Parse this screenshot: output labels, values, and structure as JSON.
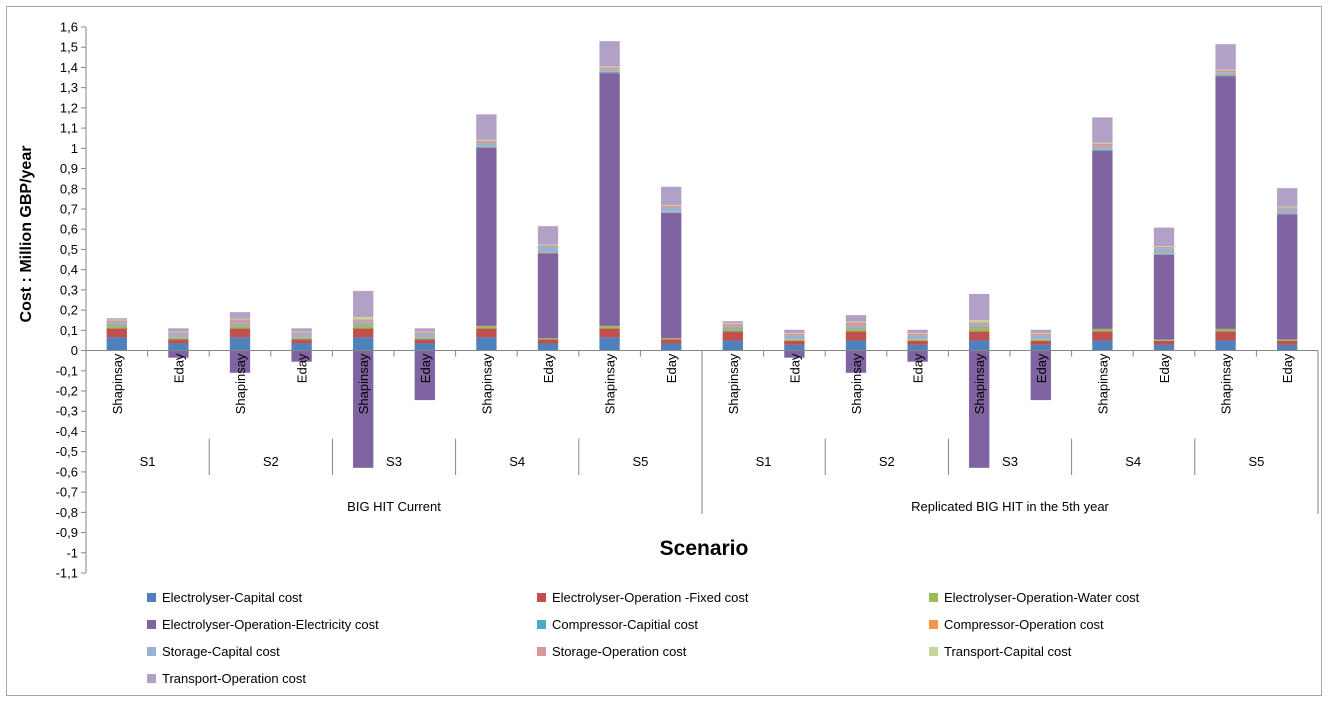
{
  "chart_data": {
    "type": "bar",
    "stacked": true,
    "ylabel": "Cost :  Million GBP/year",
    "xlabel": "Scenario",
    "ylim": [
      -1.1,
      1.6
    ],
    "ytick_step": 0.1,
    "ytick_labels": [
      "-1,1",
      "-1",
      "-0,9",
      "-0,8",
      "-0,7",
      "-0,6",
      "-0,5",
      "-0,4",
      "-0,3",
      "-0,2",
      "-0,1",
      "0",
      "0,1",
      "0,2",
      "0,3",
      "0,4",
      "0,5",
      "0,6",
      "0,7",
      "0,8",
      "0,9",
      "1",
      "1,1",
      "1,2",
      "1,3",
      "1,4",
      "1,5",
      "1,6"
    ],
    "legend_position": "bottom",
    "grid": false,
    "groups": [
      {
        "label": "BIG HIT Current",
        "scenarios": [
          "S1",
          "S2",
          "S3",
          "S4",
          "S5"
        ]
      },
      {
        "label": "Replicated BIG HIT in the 5th year",
        "scenarios": [
          "S1",
          "S2",
          "S3",
          "S4",
          "S5"
        ]
      }
    ],
    "categories": [
      "Shapinsay",
      "Eday",
      "Shapinsay",
      "Eday",
      "Shapinsay",
      "Eday",
      "Shapinsay",
      "Eday",
      "Shapinsay",
      "Eday",
      "Shapinsay",
      "Eday",
      "Shapinsay",
      "Eday",
      "Shapinsay",
      "Eday",
      "Shapinsay",
      "Eday",
      "Shapinsay",
      "Eday"
    ],
    "series": [
      {
        "name": "Electrolyser-Capital cost",
        "color": "#4f81bd",
        "values": [
          0.065,
          0.035,
          0.065,
          0.035,
          0.065,
          0.035,
          0.065,
          0.035,
          0.065,
          0.035,
          0.05,
          0.028,
          0.05,
          0.028,
          0.05,
          0.028,
          0.05,
          0.028,
          0.05,
          0.028
        ]
      },
      {
        "name": "Electrolyser-Operation -Fixed cost",
        "color": "#c0504d",
        "values": [
          0.045,
          0.02,
          0.045,
          0.02,
          0.045,
          0.02,
          0.045,
          0.02,
          0.045,
          0.02,
          0.045,
          0.02,
          0.045,
          0.02,
          0.045,
          0.02,
          0.045,
          0.02,
          0.045,
          0.02
        ]
      },
      {
        "name": "Electrolyser-Operation-Water cost",
        "color": "#9bbb59",
        "values": [
          0.01,
          0.005,
          0.01,
          0.005,
          0.015,
          0.005,
          0.012,
          0.006,
          0.012,
          0.006,
          0.01,
          0.005,
          0.01,
          0.005,
          0.015,
          0.005,
          0.012,
          0.006,
          0.012,
          0.006
        ]
      },
      {
        "name": "Electrolyser-Operation-Electricity cost",
        "color": "#8064a2",
        "values": [
          0,
          -0.035,
          -0.11,
          -0.055,
          -0.58,
          -0.245,
          0.88,
          0.42,
          1.25,
          0.62,
          0,
          -0.035,
          -0.11,
          -0.055,
          -0.58,
          -0.245,
          0.88,
          0.42,
          1.25,
          0.62
        ]
      },
      {
        "name": "Compressor-Capitial cost",
        "color": "#4bacc6",
        "values": [
          0.005,
          0.003,
          0.005,
          0.003,
          0.005,
          0.003,
          0.005,
          0.003,
          0.005,
          0.003,
          0.005,
          0.003,
          0.005,
          0.003,
          0.005,
          0.003,
          0.005,
          0.003,
          0.005,
          0.003
        ]
      },
      {
        "name": "Compressor-Operation cost",
        "color": "#f79646",
        "values": [
          0.004,
          0.003,
          0.004,
          0.003,
          0.004,
          0.003,
          0.004,
          0.003,
          0.004,
          0.003,
          0.004,
          0.003,
          0.004,
          0.003,
          0.004,
          0.003,
          0.004,
          0.003,
          0.004,
          0.003
        ]
      },
      {
        "name": "Storage-Capital cost",
        "color": "#95b3d7",
        "values": [
          0.01,
          0.015,
          0.01,
          0.015,
          0.01,
          0.015,
          0.015,
          0.025,
          0.01,
          0.02,
          0.008,
          0.015,
          0.01,
          0.015,
          0.01,
          0.015,
          0.015,
          0.025,
          0.01,
          0.02
        ]
      },
      {
        "name": "Storage-Operation cost",
        "color": "#da9694",
        "values": [
          0.01,
          0.008,
          0.015,
          0.008,
          0.01,
          0.008,
          0.012,
          0.008,
          0.01,
          0.008,
          0.01,
          0.008,
          0.015,
          0.008,
          0.01,
          0.008,
          0.012,
          0.008,
          0.01,
          0.008
        ]
      },
      {
        "name": "Transport-Capital cost",
        "color": "#c3d69b",
        "values": [
          0.004,
          0.004,
          0.004,
          0.004,
          0.012,
          0.004,
          0.004,
          0.004,
          0.004,
          0.004,
          0.004,
          0.004,
          0.004,
          0.004,
          0.012,
          0.004,
          0.004,
          0.004,
          0.004,
          0.004
        ]
      },
      {
        "name": "Transport-Operation cost",
        "color": "#b2a1c7",
        "values": [
          0.007,
          0.017,
          0.032,
          0.017,
          0.129,
          0.017,
          0.126,
          0.091,
          0.125,
          0.091,
          0.009,
          0.017,
          0.032,
          0.017,
          0.129,
          0.017,
          0.126,
          0.091,
          0.125,
          0.091
        ]
      }
    ]
  }
}
